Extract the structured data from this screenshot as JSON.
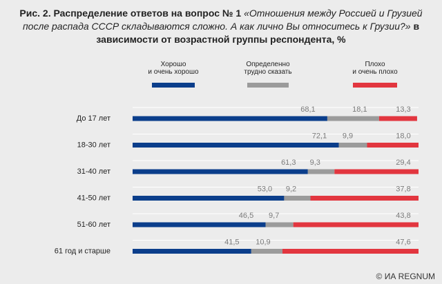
{
  "title": {
    "prefix": "Рис. 2. Распределение ответов на вопрос № 1",
    "question": "«Отношения между Россией и Грузией после распада СССР складываются сложно. А как лично Вы относитесь к Грузии?»",
    "suffix": "в зависимости от возрастной группы респондента, %"
  },
  "copyright": "© ИА REGNUM",
  "colors": {
    "good": "#0b3e8b",
    "unsure": "#9b9b9b",
    "bad": "#e2363f",
    "label": "#7a7a7a",
    "grid": "#ffffff"
  },
  "chart_data": {
    "type": "bar",
    "stacked": true,
    "orientation": "horizontal",
    "legend_position": "top",
    "categories": [
      "До 17 лет",
      "18-30 лет",
      "31-40 лет",
      "41-50 лет",
      "51-60 лет",
      "61 год и старше"
    ],
    "series": [
      {
        "name": "Хорошо\nи очень хорошо",
        "key": "good",
        "values": [
          68.1,
          72.1,
          61.3,
          53.0,
          46.5,
          41.5
        ]
      },
      {
        "name": "Определенно\nтрудно сказать",
        "key": "unsure",
        "values": [
          18.1,
          9.9,
          9.3,
          9.2,
          9.7,
          10.9
        ]
      },
      {
        "name": "Плохо\nи очень плохо",
        "key": "bad",
        "values": [
          13.3,
          18.0,
          29.4,
          37.8,
          43.8,
          47.6
        ]
      }
    ],
    "value_labels": [
      [
        "68,1",
        "18,1",
        "13,3"
      ],
      [
        "72,1",
        "9,9",
        "18,0"
      ],
      [
        "61,3",
        "9,3",
        "29,4"
      ],
      [
        "53,0",
        "9,2",
        "37,8"
      ],
      [
        "46,5",
        "9,7",
        "43,8"
      ],
      [
        "41,5",
        "10,9",
        "47,6"
      ]
    ],
    "xlim": [
      0,
      100
    ]
  }
}
